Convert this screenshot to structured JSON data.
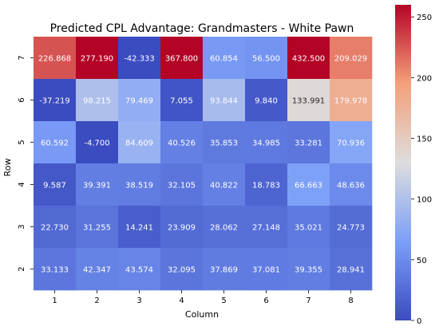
{
  "chart_data": {
    "type": "heatmap",
    "title": "Predicted CPL Advantage: Grandmasters - White Pawn",
    "xlabel": "Column",
    "ylabel": "Row",
    "x_categories": [
      "1",
      "2",
      "3",
      "4",
      "5",
      "6",
      "7",
      "8"
    ],
    "y_categories": [
      "7",
      "6",
      "5",
      "4",
      "3",
      "2"
    ],
    "values": [
      [
        226.868,
        277.19,
        -42.333,
        367.8,
        60.854,
        56.5,
        432.5,
        209.029
      ],
      [
        -37.219,
        98.215,
        79.469,
        7.055,
        93.844,
        9.84,
        133.991,
        179.978
      ],
      [
        60.592,
        -4.7,
        84.609,
        40.526,
        35.853,
        34.985,
        33.281,
        70.936
      ],
      [
        9.587,
        39.391,
        38.519,
        32.105,
        40.822,
        18.783,
        66.663,
        48.636
      ],
      [
        22.73,
        31.255,
        14.241,
        23.909,
        28.062,
        27.148,
        35.021,
        24.773
      ],
      [
        33.133,
        42.347,
        43.574,
        32.095,
        37.869,
        37.081,
        39.355,
        28.941
      ]
    ],
    "labels": [
      [
        "226.868",
        "277.190",
        "-42.333",
        "367.800",
        "60.854",
        "56.500",
        "432.500",
        "209.029"
      ],
      [
        "-37.219",
        "98.215",
        "79.469",
        "7.055",
        "93.844",
        "9.840",
        "133.991",
        "179.978"
      ],
      [
        "60.592",
        "-4.700",
        "84.609",
        "40.526",
        "35.853",
        "34.985",
        "33.281",
        "70.936"
      ],
      [
        "9.587",
        "39.391",
        "38.519",
        "32.105",
        "40.822",
        "18.783",
        "66.663",
        "48.636"
      ],
      [
        "22.730",
        "31.255",
        "14.241",
        "23.909",
        "28.062",
        "27.148",
        "35.021",
        "24.773"
      ],
      [
        "33.133",
        "42.347",
        "43.574",
        "32.095",
        "37.869",
        "37.081",
        "39.355",
        "28.941"
      ]
    ],
    "colormap": "coolwarm",
    "color_range": [
      0,
      260
    ],
    "colorbar_ticks": [
      "0",
      "50",
      "100",
      "150",
      "200",
      "250"
    ],
    "colorbar_tick_values": [
      0,
      50,
      100,
      150,
      200,
      250
    ]
  }
}
